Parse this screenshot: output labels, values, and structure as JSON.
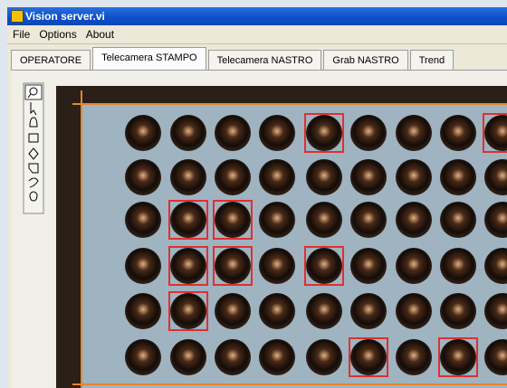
{
  "window": {
    "title": "Vision server.vi"
  },
  "menu": [
    "File",
    "Options",
    "About"
  ],
  "tabs": [
    "OPERATORE",
    "Telecamera STAMPO",
    "Telecamera NASTRO",
    "Grab NASTRO",
    "Trend"
  ]
}
